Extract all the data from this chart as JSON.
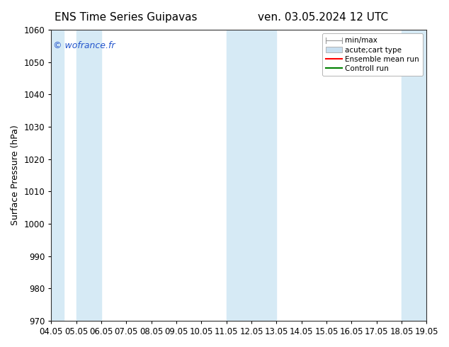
{
  "title_left": "ENS Time Series Guipavas",
  "title_right": "ven. 03.05.2024 12 UTC",
  "ylabel": "Surface Pressure (hPa)",
  "ylim": [
    970,
    1060
  ],
  "yticks": [
    970,
    980,
    990,
    1000,
    1010,
    1020,
    1030,
    1040,
    1050,
    1060
  ],
  "xlim": [
    0,
    15
  ],
  "xtick_labels": [
    "04.05",
    "05.05",
    "06.05",
    "07.05",
    "08.05",
    "09.05",
    "10.05",
    "11.05",
    "12.05",
    "13.05",
    "14.05",
    "15.05",
    "16.05",
    "17.05",
    "18.05",
    "19.05"
  ],
  "xtick_positions": [
    0,
    1,
    2,
    3,
    4,
    5,
    6,
    7,
    8,
    9,
    10,
    11,
    12,
    13,
    14,
    15
  ],
  "shaded_bands": [
    {
      "xmin": 0.0,
      "xmax": 0.5
    },
    {
      "xmin": 1.0,
      "xmax": 2.0
    },
    {
      "xmin": 7.0,
      "xmax": 9.0
    },
    {
      "xmin": 14.0,
      "xmax": 15.0
    }
  ],
  "shade_color": "#d6eaf5",
  "watermark": "© wofrance.fr",
  "watermark_color": "#2255cc",
  "legend_entries": [
    {
      "label": "min/max"
    },
    {
      "label": "acute;cart type"
    },
    {
      "label": "Ensemble mean run"
    },
    {
      "label": "Controll run"
    }
  ],
  "bg_color": "#ffffff",
  "title_fontsize": 11,
  "axis_label_fontsize": 9,
  "tick_fontsize": 8.5
}
